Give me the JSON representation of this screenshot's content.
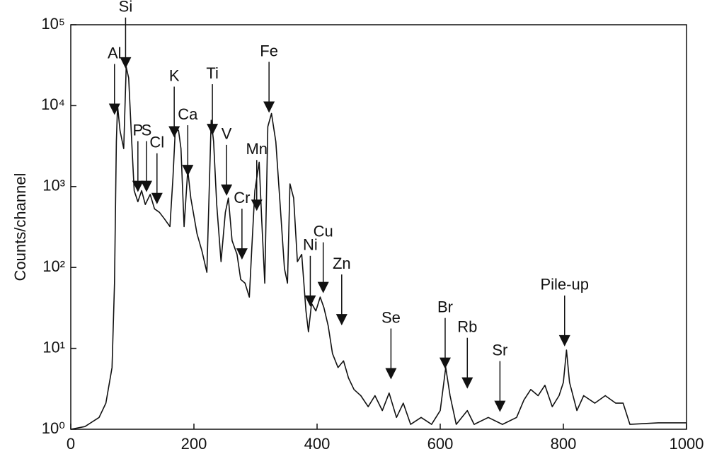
{
  "chart_data": {
    "type": "line",
    "ylabel": "Counts/channel",
    "log_y": true,
    "color": "#111111",
    "x": [
      0,
      23,
      46,
      57,
      67,
      71,
      74,
      76,
      80,
      86,
      90,
      94,
      99,
      103,
      109,
      115,
      121,
      129,
      136,
      144,
      152,
      161,
      166,
      170,
      175,
      179,
      184,
      190,
      195,
      205,
      213,
      221,
      228,
      232,
      237,
      244,
      251,
      256,
      262,
      270,
      276,
      283,
      290,
      294,
      299,
      306,
      310,
      315,
      320,
      326,
      333,
      340,
      347,
      352,
      356,
      362,
      368,
      375,
      382,
      386,
      391,
      398,
      405,
      411,
      418,
      425,
      434,
      443,
      451,
      460,
      471,
      483,
      494,
      506,
      517,
      529,
      540,
      552,
      569,
      586,
      600,
      609,
      616,
      626,
      644,
      655,
      678,
      701,
      724,
      736,
      747,
      759,
      770,
      782,
      793,
      800,
      805,
      810,
      822,
      833,
      851,
      868,
      885,
      897,
      908,
      954,
      1000
    ],
    "values": [
      1,
      1.08,
      1.4,
      2.1,
      5.8,
      64,
      3600,
      10000,
      4900,
      2950,
      30000,
      22000,
      3600,
      890,
      650,
      890,
      600,
      800,
      530,
      480,
      400,
      320,
      1300,
      5500,
      4900,
      2950,
      320,
      1600,
      720,
      260,
      160,
      87,
      6600,
      3600,
      600,
      118,
      480,
      720,
      215,
      145,
      71,
      64,
      43,
      175,
      890,
      2000,
      400,
      64,
      5500,
      8000,
      3600,
      600,
      97,
      64,
      1080,
      720,
      118,
      145,
      29,
      16,
      36,
      29,
      43,
      32,
      19,
      8.6,
      5.8,
      7,
      4.3,
      3.1,
      2.6,
      1.9,
      2.6,
      1.7,
      2.8,
      1.4,
      2.1,
      1.15,
      1.4,
      1.15,
      1.7,
      5.8,
      2.6,
      1.15,
      1.7,
      1.15,
      1.4,
      1.15,
      1.4,
      2.3,
      3.1,
      2.6,
      3.5,
      1.9,
      2.6,
      3.8,
      9.5,
      3.8,
      1.7,
      2.6,
      2.1,
      2.6,
      2.1,
      2.1,
      1.15,
      1.2,
      1.2
    ],
    "xlim": [
      0,
      1000
    ],
    "xticks": [
      0,
      200,
      400,
      600,
      800,
      1000
    ],
    "ylim": [
      1,
      100000
    ],
    "yticks": [
      {
        "value": 1,
        "label": "10⁰"
      },
      {
        "value": 10,
        "label": "10¹"
      },
      {
        "value": 100,
        "label": "10²"
      },
      {
        "value": 1000,
        "label": "10³"
      },
      {
        "value": 10000,
        "label": "10⁴"
      },
      {
        "value": 100000,
        "label": "10⁵"
      }
    ],
    "annotations": [
      {
        "text": "Al",
        "x": 71,
        "y": 8000
      },
      {
        "text": "Si",
        "x": 89,
        "y": 30000
      },
      {
        "text": "P",
        "x": 109,
        "y": 890
      },
      {
        "text": "S",
        "x": 123,
        "y": 890
      },
      {
        "text": "Cl",
        "x": 140,
        "y": 630
      },
      {
        "text": "K",
        "x": 168,
        "y": 4200
      },
      {
        "text": "Ca",
        "x": 190,
        "y": 1400
      },
      {
        "text": "Ti",
        "x": 230,
        "y": 4500
      },
      {
        "text": "V",
        "x": 253,
        "y": 800
      },
      {
        "text": "Cr",
        "x": 278,
        "y": 130
      },
      {
        "text": "Mn",
        "x": 302,
        "y": 520
      },
      {
        "text": "Fe",
        "x": 322,
        "y": 8500
      },
      {
        "text": "Ni",
        "x": 389,
        "y": 34
      },
      {
        "text": "Cu",
        "x": 410,
        "y": 50
      },
      {
        "text": "Zn",
        "x": 440,
        "y": 20
      },
      {
        "text": "Se",
        "x": 520,
        "y": 4.3
      },
      {
        "text": "Br",
        "x": 608,
        "y": 5.8
      },
      {
        "text": "Rb",
        "x": 644,
        "y": 3.3
      },
      {
        "text": "Sr",
        "x": 697,
        "y": 1.7
      },
      {
        "text": "Pile-up",
        "x": 802,
        "y": 11
      }
    ]
  }
}
